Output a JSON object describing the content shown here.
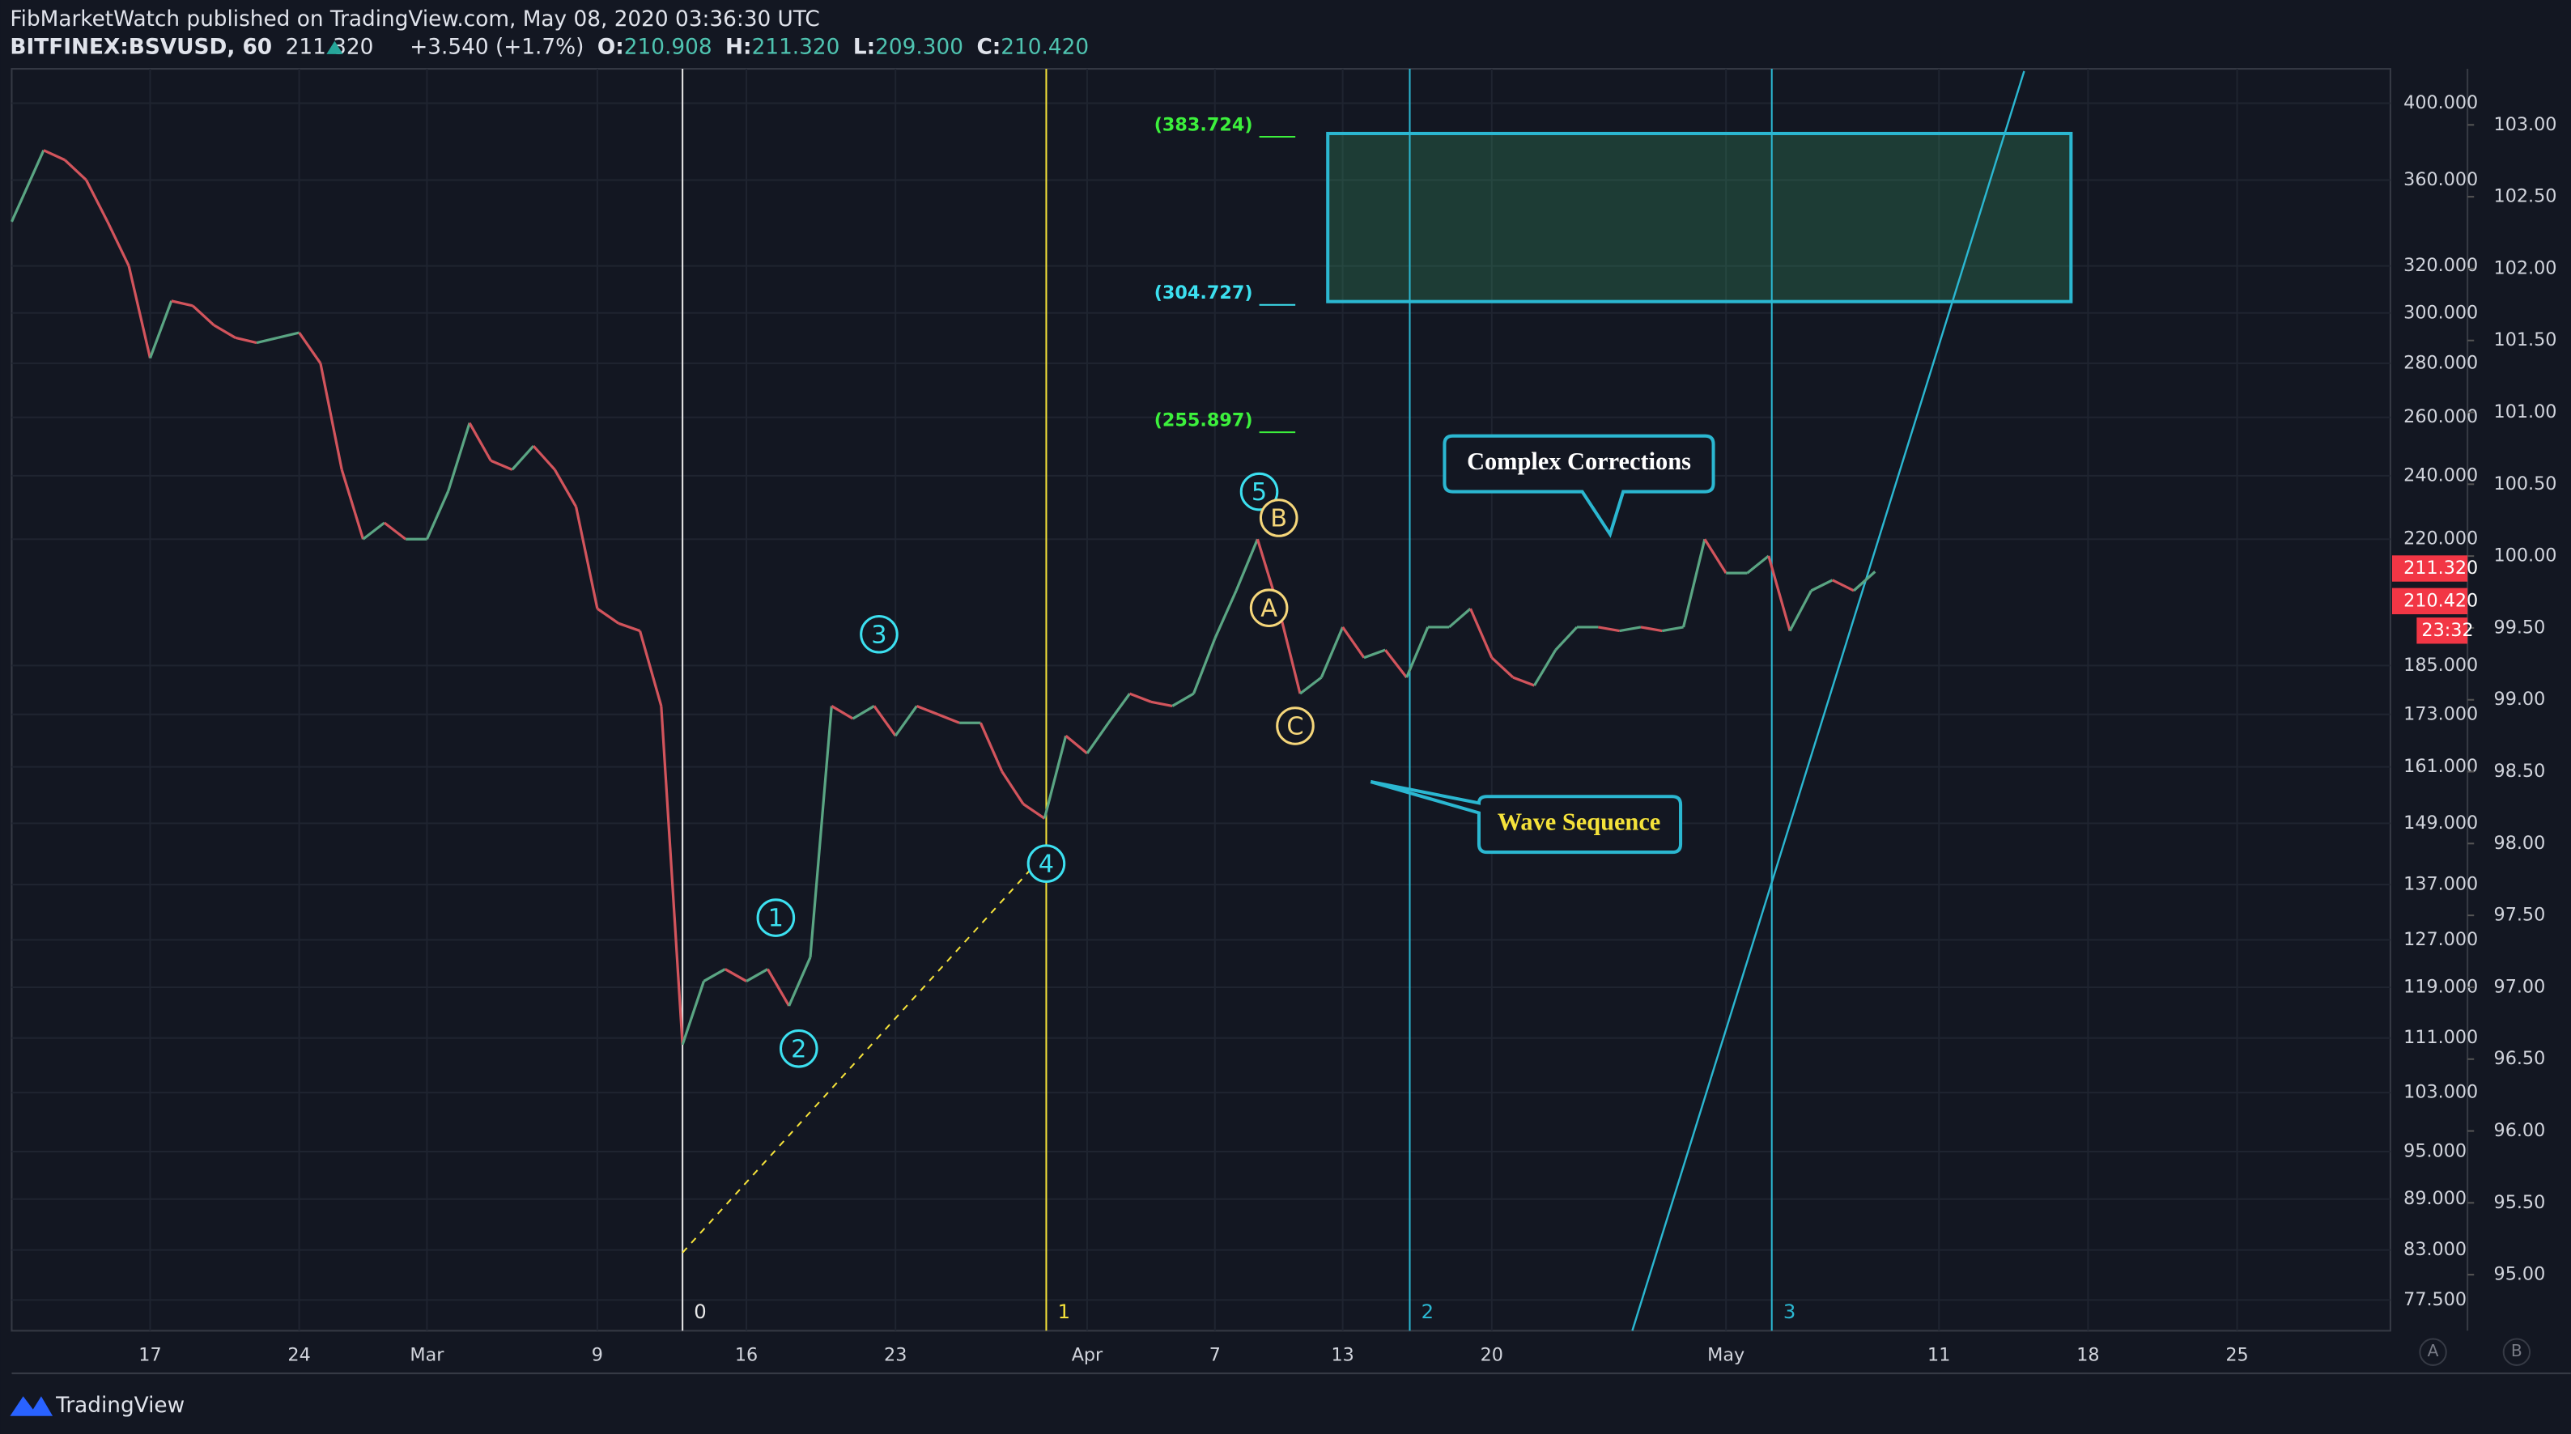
{
  "header": {
    "title": "FibMarketWatch published on TradingView.com, May 08, 2020 03:36:30 UTC",
    "symbol": "BITFINEX:BSVUSD, 60",
    "last": "211.320",
    "change": "+3.540 (+1.7%)",
    "ohlc": [
      {
        "label": "O:",
        "value": "210.908"
      },
      {
        "label": "H:",
        "value": "211.320"
      },
      {
        "label": "L:",
        "value": "209.300"
      },
      {
        "label": "C:",
        "value": "210.420"
      }
    ]
  },
  "footer": {
    "brand": "TradingView",
    "buttons": [
      "A",
      "B"
    ]
  },
  "chart_data": {
    "type": "line",
    "log_scale": true,
    "grid": true,
    "x": [
      41.5,
      43,
      44,
      45,
      46,
      47,
      48,
      49,
      50,
      51,
      52,
      53,
      54,
      55,
      56,
      57,
      58,
      59,
      60,
      61,
      62,
      63,
      64,
      65,
      66,
      67,
      68,
      69,
      70,
      71,
      72,
      73,
      74,
      75,
      76,
      77,
      78,
      79,
      80,
      81,
      82,
      83,
      84,
      85,
      86,
      87,
      88,
      89,
      90,
      91,
      92,
      93,
      94,
      95,
      96,
      97,
      98,
      99,
      100,
      101,
      102,
      103,
      104,
      105,
      106,
      107,
      108,
      109,
      110,
      111,
      112,
      113,
      114,
      115,
      116,
      117,
      118,
      119,
      120,
      121,
      122,
      123,
      124,
      125,
      126,
      127,
      128,
      129
    ],
    "series": [
      {
        "name": "BSVUSD",
        "up_color": "#5aa583",
        "down_color": "#d2545c",
        "values": [
          340,
          375,
          370,
          360,
          340,
          320,
          282,
          305,
          303,
          295,
          290,
          288,
          290,
          292,
          280,
          242,
          220,
          225,
          220,
          220,
          235,
          258,
          245,
          242,
          250,
          242,
          230,
          200,
          196,
          194,
          175,
          110,
          120,
          122,
          120,
          122,
          116,
          124,
          175,
          172,
          175,
          168,
          175,
          173,
          171,
          171,
          160,
          153,
          150,
          168,
          164,
          171,
          178,
          176,
          175,
          178,
          192,
          205,
          220,
          200,
          178,
          182,
          195,
          187,
          189,
          182,
          195,
          195,
          200,
          187,
          182,
          180,
          189,
          195,
          195,
          194,
          195,
          194,
          195,
          220,
          210,
          210,
          215,
          194,
          205,
          208,
          205,
          210.42
        ]
      }
    ],
    "xlim": [
      41.5,
      153.2
    ],
    "xticks": [
      {
        "value": 48,
        "label": "17"
      },
      {
        "value": 55,
        "label": "24"
      },
      {
        "value": 61,
        "label": "Mar"
      },
      {
        "value": 69,
        "label": "9"
      },
      {
        "value": 76,
        "label": "16"
      },
      {
        "value": 83,
        "label": "23"
      },
      {
        "value": 92,
        "label": "Apr"
      },
      {
        "value": 98,
        "label": "7"
      },
      {
        "value": 104,
        "label": "13"
      },
      {
        "value": 111,
        "label": "20"
      },
      {
        "value": 122,
        "label": "May"
      },
      {
        "value": 132,
        "label": "11"
      },
      {
        "value": 139,
        "label": "18"
      },
      {
        "value": 146,
        "label": "25"
      }
    ],
    "ylim": [
      74.3,
      419.3
    ],
    "yticks": [
      {
        "value": 400,
        "label": "400.000"
      },
      {
        "value": 360,
        "label": "360.000"
      },
      {
        "value": 320,
        "label": "320.000"
      },
      {
        "value": 300,
        "label": "300.000"
      },
      {
        "value": 280,
        "label": "280.000"
      },
      {
        "value": 260,
        "label": "260.000"
      },
      {
        "value": 240,
        "label": "240.000"
      },
      {
        "value": 220,
        "label": "220.000"
      },
      {
        "value": 185,
        "label": "185.000"
      },
      {
        "value": 173,
        "label": "173.000"
      },
      {
        "value": 161,
        "label": "161.000"
      },
      {
        "value": 149,
        "label": "149.000"
      },
      {
        "value": 137,
        "label": "137.000"
      },
      {
        "value": 127,
        "label": "127.000"
      },
      {
        "value": 119,
        "label": "119.000"
      },
      {
        "value": 111,
        "label": "111.000"
      },
      {
        "value": 103,
        "label": "103.000"
      },
      {
        "value": 95,
        "label": "95.000"
      },
      {
        "value": 89,
        "label": "89.000"
      },
      {
        "value": 83,
        "label": "83.000"
      },
      {
        "value": 77.5,
        "label": "77.500"
      }
    ],
    "y2lim": [
      94.61,
      103.39
    ],
    "y2ticks": [
      {
        "value": 103,
        "label": "103.00"
      },
      {
        "value": 102.5,
        "label": "102.50"
      },
      {
        "value": 102,
        "label": "102.00"
      },
      {
        "value": 101.5,
        "label": "101.50"
      },
      {
        "value": 101,
        "label": "101.00"
      },
      {
        "value": 100.5,
        "label": "100.50"
      },
      {
        "value": 100,
        "label": "100.00"
      },
      {
        "value": 99.5,
        "label": "99.50"
      },
      {
        "value": 99,
        "label": "99.00"
      },
      {
        "value": 98.5,
        "label": "98.50"
      },
      {
        "value": 98,
        "label": "98.00"
      },
      {
        "value": 97.5,
        "label": "97.50"
      },
      {
        "value": 97,
        "label": "97.00"
      },
      {
        "value": 96.5,
        "label": "96.50"
      },
      {
        "value": 96,
        "label": "96.00"
      },
      {
        "value": 95.5,
        "label": "95.50"
      },
      {
        "value": 95,
        "label": "95.00"
      }
    ],
    "price_badges": [
      {
        "value": 211.32,
        "label": "211.320"
      },
      {
        "value": 210.42,
        "label": "210.420"
      }
    ],
    "countdown": "23:32",
    "time_lines": [
      {
        "x": 73,
        "label": "0",
        "color": "#e8e8e8"
      },
      {
        "x": 90.08,
        "label": "1",
        "color": "#f5e23a"
      },
      {
        "x": 107.15,
        "label": "2",
        "color": "#2bb7d1"
      },
      {
        "x": 124.15,
        "label": "3",
        "color": "#2bb7d1"
      }
    ],
    "fib_levels": [
      {
        "value": 383.724,
        "label": "(383.724)",
        "color": "#3cf03c"
      },
      {
        "value": 304.727,
        "label": "(304.727)",
        "color": "#3ce0f0"
      },
      {
        "value": 255.897,
        "label": "(255.897)",
        "color": "#3cf03c"
      }
    ],
    "target_zone": {
      "x": [
        103.3,
        138.2
      ],
      "y": [
        304.727,
        383.724
      ],
      "color": "#2bb7d1"
    },
    "trend_line": {
      "x": [
        117.6,
        136.0
      ],
      "y": [
        74.3,
        418
      ],
      "color": "#2bb7d1"
    },
    "wave_line": {
      "x": [
        73,
        90.08
      ],
      "y": [
        82.7,
        143.2
      ],
      "color": "#f5e23a"
    },
    "wave_labels": [
      {
        "label": "1",
        "x": 77.38,
        "y": 130.9,
        "color": "#3ce0f0"
      },
      {
        "label": "2",
        "x": 78.46,
        "y": 109.4,
        "color": "#3ce0f0"
      },
      {
        "label": "3",
        "x": 82.23,
        "y": 193.1,
        "color": "#3ce0f0"
      },
      {
        "label": "4",
        "x": 90.08,
        "y": 141.0,
        "color": "#3ce0f0"
      },
      {
        "label": "5",
        "x": 100.08,
        "y": 234.8,
        "color": "#3ce0f0"
      },
      {
        "label": "A",
        "x": 100.54,
        "y": 200.2,
        "color": "#f5d67a"
      },
      {
        "label": "B",
        "x": 101.0,
        "y": 226.5,
        "color": "#f5d67a"
      },
      {
        "label": "C",
        "x": 101.77,
        "y": 170.3,
        "color": "#f5d67a"
      }
    ],
    "annotations": [
      {
        "text": "Complex Corrections",
        "color": "#ffffff"
      },
      {
        "text": "Wave Sequence",
        "color": "#f5e23a"
      }
    ]
  }
}
